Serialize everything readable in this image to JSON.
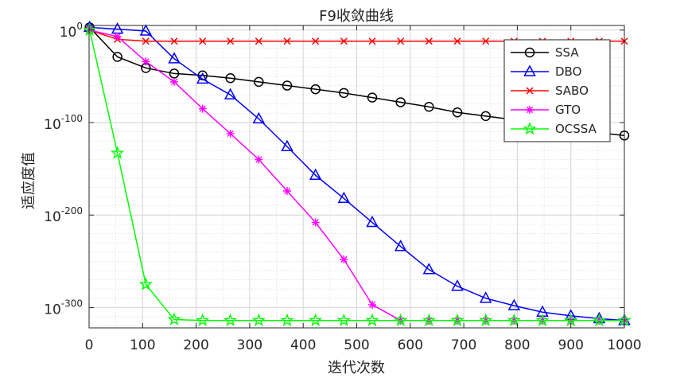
{
  "chart_data": {
    "type": "line",
    "title": "F9收敛曲线",
    "xlabel": "迭代次数",
    "ylabel": "适应度值",
    "xlim": [
      0,
      1000
    ],
    "yscale": "log",
    "ylim_log10": [
      -322,
      5
    ],
    "x_ticks": [
      0,
      100,
      200,
      300,
      400,
      500,
      600,
      700,
      800,
      900,
      1000
    ],
    "y_ticks": [
      {
        "base": "10",
        "exp": "0",
        "value_log10": 0
      },
      {
        "base": "10",
        "exp": "-100",
        "value_log10": -100
      },
      {
        "base": "10",
        "exp": "-200",
        "value_log10": -200
      },
      {
        "base": "10",
        "exp": "-300",
        "value_log10": -300
      }
    ],
    "grid": true,
    "minor_grid": true,
    "legend_position": "top-right",
    "series": [
      {
        "name": "SSA",
        "color": "#000000",
        "marker": "circle",
        "x": [
          1,
          53,
          106,
          159,
          212,
          264,
          317,
          370,
          423,
          476,
          529,
          582,
          635,
          688,
          741,
          794,
          847,
          900,
          953,
          1000
        ],
        "y_log10": [
          3,
          -29,
          -41,
          -47,
          -49,
          -52,
          -56,
          -60,
          -64,
          -68,
          -73,
          -78,
          -83,
          -89,
          -93,
          -97,
          -101,
          -106,
          -111,
          -114
        ]
      },
      {
        "name": "DBO",
        "color": "#0000ff",
        "marker": "triangle",
        "x": [
          1,
          53,
          106,
          159,
          212,
          264,
          317,
          370,
          423,
          476,
          529,
          582,
          635,
          688,
          741,
          794,
          847,
          900,
          953,
          1000
        ],
        "y_log10": [
          3,
          1,
          -1,
          -31,
          -53,
          -70,
          -96,
          -126,
          -157,
          -182,
          -208,
          -234,
          -259,
          -277,
          -290,
          -298,
          -305,
          -309,
          -312,
          -314
        ]
      },
      {
        "name": "SABO",
        "color": "#ff0000",
        "marker": "x",
        "x": [
          1,
          53,
          106,
          159,
          212,
          264,
          317,
          370,
          423,
          476,
          529,
          582,
          635,
          688,
          741,
          794,
          847,
          900,
          953,
          1000
        ],
        "y_log10": [
          0,
          -10,
          -12,
          -12,
          -12,
          -12,
          -12,
          -12,
          -12,
          -12,
          -12,
          -12,
          -12,
          -12,
          -12,
          -12,
          -12,
          -12,
          -12,
          -12
        ]
      },
      {
        "name": "GTO",
        "color": "#ff00ff",
        "marker": "star",
        "x": [
          1,
          53,
          106,
          159,
          212,
          264,
          317,
          370,
          423,
          476,
          529,
          582,
          635,
          688,
          741,
          794,
          847,
          900,
          953,
          1000
        ],
        "y_log10": [
          0,
          -7,
          -34,
          -56,
          -85,
          -112,
          -140,
          -174,
          -208,
          -248,
          -297,
          -314,
          -314,
          -314,
          -314,
          -314,
          -314,
          -314,
          -314,
          -314
        ]
      },
      {
        "name": "OCSSA",
        "color": "#00ff00",
        "marker": "pentagram",
        "x": [
          1,
          53,
          106,
          159,
          212,
          264,
          317,
          370,
          423,
          476,
          529,
          582,
          635,
          688,
          741,
          794,
          847,
          900,
          953,
          1000
        ],
        "y_log10": [
          0,
          -133,
          -275,
          -313,
          -314,
          -314,
          -314,
          -314,
          -314,
          -314,
          -314,
          -314,
          -314,
          -314,
          -314,
          -314,
          -314,
          -314,
          -314,
          -314
        ]
      }
    ]
  }
}
